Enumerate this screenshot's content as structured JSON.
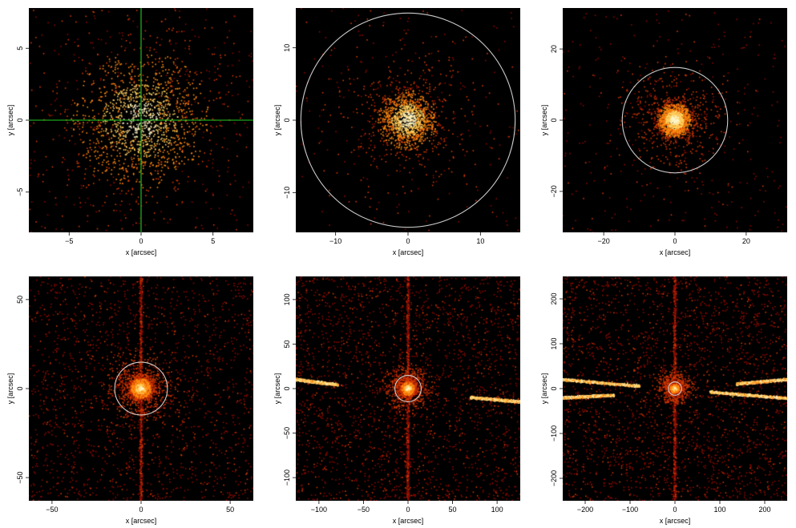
{
  "figure": {
    "background": "#000000",
    "colormap": [
      "#3a0000",
      "#8a0a00",
      "#d23a00",
      "#ff8a10",
      "#ffd060",
      "#fff6c8"
    ],
    "overlay_circle_color": "#cccccc",
    "crosshair_color": "#22cc22",
    "xlabel": "x [arcsec]",
    "ylabel": "y [arcsec]"
  },
  "chart_data": [
    {
      "type": "heatmap",
      "xlabel": "x [arcsec]",
      "ylabel": "y [arcsec]",
      "xlim": [
        -7.8,
        7.8
      ],
      "ylim": [
        -7.8,
        7.8
      ],
      "xticks": [
        -5,
        0,
        5
      ],
      "yticks": [
        -5,
        0,
        5
      ],
      "xtick_labels": [
        "−5",
        "0",
        "5"
      ],
      "ytick_labels": [
        "−5",
        "0",
        "5"
      ],
      "source": {
        "x": 0,
        "y": 0
      },
      "overlay": {
        "kind": "crosshair",
        "x": 0,
        "y": 0,
        "color": "#22cc22"
      },
      "model": {
        "events": 1800,
        "core_sigma": 2.2,
        "background": 260,
        "streaks": [],
        "vertical_line": false
      }
    },
    {
      "type": "heatmap",
      "xlabel": "x [arcsec]",
      "ylabel": "y [arcsec]",
      "xlim": [
        -15.5,
        15.5
      ],
      "ylim": [
        -15.5,
        15.5
      ],
      "xticks": [
        -10,
        0,
        10
      ],
      "yticks": [
        -10,
        0,
        10
      ],
      "xtick_labels": [
        "−10",
        "0",
        "10"
      ],
      "ytick_labels": [
        "−10",
        "0",
        "10"
      ],
      "source": {
        "x": 0,
        "y": 0
      },
      "overlay": {
        "kind": "circle",
        "x": 0,
        "y": 0,
        "radius": 14.8,
        "color": "#cccccc"
      },
      "model": {
        "events": 1500,
        "core_sigma": 1.9,
        "background": 160,
        "streaks": [],
        "vertical_line": false
      }
    },
    {
      "type": "heatmap",
      "xlabel": "x [arcsec]",
      "ylabel": "y [arcsec]",
      "xlim": [
        -31.5,
        31.5
      ],
      "ylim": [
        -31.5,
        31.5
      ],
      "xticks": [
        -20,
        0,
        20
      ],
      "yticks": [
        -20,
        0,
        20
      ],
      "xtick_labels": [
        "−20",
        "0",
        "20"
      ],
      "ytick_labels": [
        "−20",
        "0",
        "20"
      ],
      "source": {
        "x": 0,
        "y": 0
      },
      "overlay": {
        "kind": "circle",
        "x": 0,
        "y": 0,
        "radius": 14.8,
        "color": "#cccccc"
      },
      "model": {
        "events": 1900,
        "core_sigma": 2.2,
        "background": 320,
        "streaks": [],
        "vertical_line": false
      }
    },
    {
      "type": "heatmap",
      "xlabel": "x [arcsec]",
      "ylabel": "y [arcsec]",
      "xlim": [
        -63,
        63
      ],
      "ylim": [
        -63,
        63
      ],
      "xticks": [
        -50,
        0,
        50
      ],
      "yticks": [
        -50,
        0,
        50
      ],
      "xtick_labels": [
        "−50",
        "0",
        "50"
      ],
      "ytick_labels": [
        "−50",
        "0",
        "50"
      ],
      "source": {
        "x": 0,
        "y": 0
      },
      "overlay": {
        "kind": "circle",
        "x": 0,
        "y": 0,
        "radius": 14.8,
        "color": "#cccccc"
      },
      "model": {
        "events": 3000,
        "core_sigma": 2.6,
        "background": 1700,
        "streaks": [],
        "vertical_line": true
      }
    },
    {
      "type": "heatmap",
      "xlabel": "x [arcsec]",
      "ylabel": "y [arcsec]",
      "xlim": [
        -126,
        126
      ],
      "ylim": [
        -126,
        126
      ],
      "xticks": [
        -100,
        -50,
        0,
        50,
        100
      ],
      "yticks": [
        -100,
        -50,
        0,
        50,
        100
      ],
      "xtick_labels": [
        "−100",
        "−50",
        "0",
        "50",
        "100"
      ],
      "ytick_labels": [
        "−100",
        "−50",
        "0",
        "50",
        "100"
      ],
      "source": {
        "x": 0,
        "y": 0
      },
      "overlay": {
        "kind": "circle",
        "x": 0,
        "y": 0,
        "radius": 14.8,
        "color": "#cccccc"
      },
      "model": {
        "events": 2600,
        "core_sigma": 3.5,
        "background": 2300,
        "vertical_line": true,
        "streaks": [
          {
            "x1": -126,
            "y1": 10,
            "x2": -78,
            "y2": 4
          },
          {
            "x1": 70,
            "y1": -10,
            "x2": 126,
            "y2": -15
          }
        ]
      }
    },
    {
      "type": "heatmap",
      "xlabel": "x [arcsec]",
      "ylabel": "y [arcsec]",
      "xlim": [
        -250,
        250
      ],
      "ylim": [
        -250,
        250
      ],
      "xticks": [
        -200,
        -100,
        0,
        100,
        200
      ],
      "yticks": [
        -200,
        -100,
        0,
        100,
        200
      ],
      "xtick_labels": [
        "−200",
        "−100",
        "0",
        "100",
        "200"
      ],
      "ytick_labels": [
        "−200",
        "−100",
        "0",
        "100",
        "200"
      ],
      "source": {
        "x": 0,
        "y": 0
      },
      "overlay": {
        "kind": "circle",
        "x": 0,
        "y": 0,
        "radius": 14.8,
        "color": "#cccccc"
      },
      "model": {
        "events": 2600,
        "core_sigma": 5,
        "background": 2400,
        "vertical_line": true,
        "streaks": [
          {
            "x1": -250,
            "y1": 20,
            "x2": -78,
            "y2": 5
          },
          {
            "x1": -250,
            "y1": -21,
            "x2": -135,
            "y2": -15
          },
          {
            "x1": 78,
            "y1": -8,
            "x2": 250,
            "y2": -22
          },
          {
            "x1": 137,
            "y1": 10,
            "x2": 250,
            "y2": 20
          }
        ]
      }
    }
  ]
}
